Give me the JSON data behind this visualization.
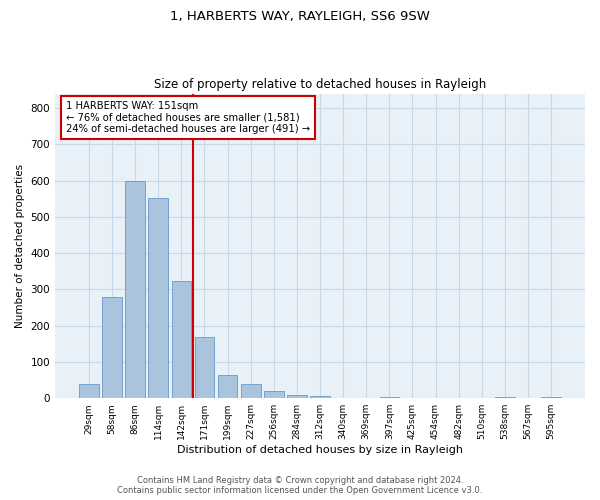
{
  "title1": "1, HARBERTS WAY, RAYLEIGH, SS6 9SW",
  "title2": "Size of property relative to detached houses in Rayleigh",
  "xlabel": "Distribution of detached houses by size in Rayleigh",
  "ylabel": "Number of detached properties",
  "categories": [
    "29sqm",
    "58sqm",
    "86sqm",
    "114sqm",
    "142sqm",
    "171sqm",
    "199sqm",
    "227sqm",
    "256sqm",
    "284sqm",
    "312sqm",
    "340sqm",
    "369sqm",
    "397sqm",
    "425sqm",
    "454sqm",
    "482sqm",
    "510sqm",
    "538sqm",
    "567sqm",
    "595sqm"
  ],
  "values": [
    38,
    280,
    598,
    553,
    323,
    170,
    65,
    38,
    20,
    10,
    7,
    0,
    0,
    3,
    0,
    0,
    0,
    0,
    3,
    0,
    3
  ],
  "bar_color": "#aac4de",
  "bar_edge_color": "#6699cc",
  "property_line_label": "1 HARBERTS WAY: 151sqm",
  "annotation_line1": "← 76% of detached houses are smaller (1,581)",
  "annotation_line2": "24% of semi-detached houses are larger (491) →",
  "vline_color": "#cc0000",
  "box_color": "#cc0000",
  "ylim": [
    0,
    840
  ],
  "yticks": [
    0,
    100,
    200,
    300,
    400,
    500,
    600,
    700,
    800
  ],
  "grid_color": "#c8d8e8",
  "bg_color": "#e8f0f8",
  "footer1": "Contains HM Land Registry data © Crown copyright and database right 2024.",
  "footer2": "Contains public sector information licensed under the Open Government Licence v3.0."
}
